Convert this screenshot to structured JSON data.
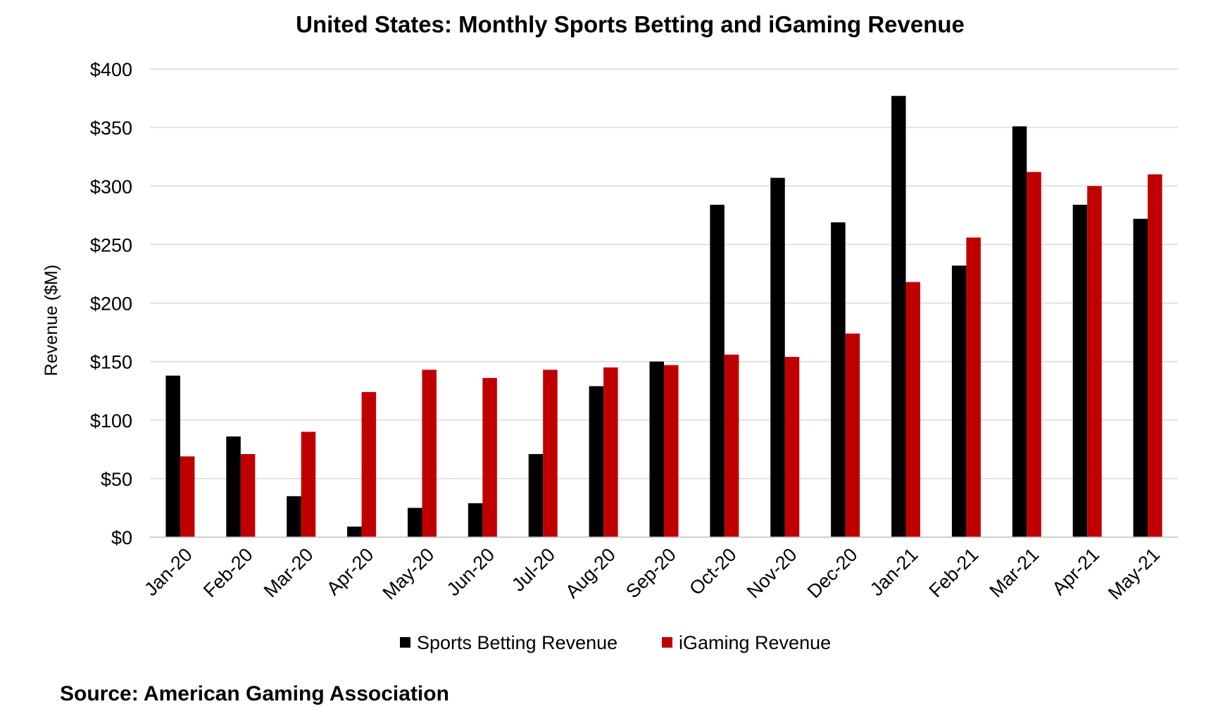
{
  "chart_data": {
    "type": "bar",
    "title": "United States: Monthly Sports Betting and iGaming Revenue",
    "ylabel": "Revenue ($M)",
    "xlabel": "",
    "ylim": [
      0,
      400
    ],
    "y_ticks": [
      "$0",
      "$50",
      "$100",
      "$150",
      "$200",
      "$250",
      "$300",
      "$350",
      "$400"
    ],
    "y_tick_values": [
      0,
      50,
      100,
      150,
      200,
      250,
      300,
      350,
      400
    ],
    "grid": true,
    "legend_position": "bottom",
    "categories": [
      "Jan-20",
      "Feb-20",
      "Mar-20",
      "Apr-20",
      "May-20",
      "Jun-20",
      "Jul-20",
      "Aug-20",
      "Sep-20",
      "Oct-20",
      "Nov-20",
      "Dec-20",
      "Jan-21",
      "Feb-21",
      "Mar-21",
      "Apr-21",
      "May-21"
    ],
    "series": [
      {
        "name": "Sports Betting Revenue",
        "color": "#000000",
        "values": [
          138,
          86,
          35,
          9,
          25,
          29,
          71,
          129,
          150,
          284,
          307,
          269,
          377,
          232,
          351,
          284,
          272
        ]
      },
      {
        "name": "iGaming Revenue",
        "color": "#c00000",
        "values": [
          69,
          71,
          90,
          124,
          143,
          136,
          143,
          145,
          147,
          156,
          154,
          174,
          218,
          256,
          312,
          300,
          310
        ]
      }
    ]
  },
  "source": "Source: American Gaming Association"
}
